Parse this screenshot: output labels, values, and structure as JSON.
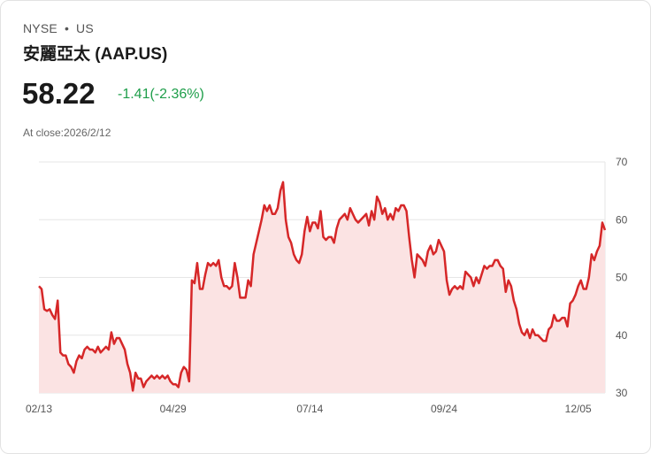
{
  "header": {
    "exchange": "NYSE",
    "separator": "•",
    "market": "US",
    "title": "安麗亞太 (AAP.US)",
    "price": "58.22",
    "change": "-1.41(-2.36%)",
    "close_label": "At close:2026/2/12"
  },
  "colors": {
    "line": "#d62728",
    "fill": "#fbe3e3",
    "grid": "#e6e6e6",
    "change_text": "#1e9e4a"
  },
  "chart_data": {
    "type": "area",
    "title": "安麗亞太 (AAP.US)",
    "xlabel": "",
    "ylabel": "",
    "ylim": [
      30,
      70
    ],
    "yticks": [
      30,
      40,
      50,
      60,
      70
    ],
    "y_axis_side": "right",
    "grid": true,
    "x_tick_labels": [
      {
        "label": "02/13",
        "index": 0
      },
      {
        "label": "04/29",
        "index": 50
      },
      {
        "label": "07/14",
        "index": 101
      },
      {
        "label": "09/24",
        "index": 151
      },
      {
        "label": "12/05",
        "index": 201
      }
    ],
    "series": [
      {
        "name": "AAP.US",
        "values": [
          48.5,
          48,
          44.5,
          44.2,
          44.5,
          43.5,
          42.8,
          46,
          37,
          36.5,
          36.5,
          35,
          34.5,
          33.5,
          35.5,
          36.5,
          36,
          37.5,
          38,
          37.5,
          37.5,
          37,
          38,
          37,
          37.5,
          38,
          37.5,
          40.5,
          38.5,
          39.5,
          39.5,
          38.5,
          37.5,
          35,
          33.5,
          30.4,
          33.5,
          32.5,
          32.5,
          31,
          32,
          32.5,
          33,
          32.5,
          33,
          32.5,
          33,
          32.5,
          33,
          32,
          31.5,
          31.5,
          31,
          33.5,
          34.5,
          34,
          32,
          49.5,
          49,
          52.5,
          48,
          48,
          50.5,
          52.5,
          52,
          52.5,
          52,
          53,
          50,
          48.5,
          48.5,
          48,
          48.5,
          52.5,
          50,
          46.5,
          46.5,
          46.5,
          49.5,
          48.5,
          54,
          56,
          58,
          60,
          62.5,
          61.5,
          62.5,
          61,
          61,
          62,
          65,
          66.5,
          60,
          57,
          56,
          54,
          53,
          52.5,
          54,
          58,
          60.5,
          58,
          59.5,
          59.5,
          58.5,
          61.5,
          57,
          56.5,
          57,
          57,
          56,
          58.5,
          60,
          60.5,
          61,
          60,
          62,
          61,
          60,
          59.5,
          60,
          60.5,
          61,
          59,
          61.5,
          60,
          64,
          63,
          61,
          62,
          60,
          61,
          60,
          62,
          61.5,
          62.5,
          62.5,
          61.5,
          57,
          53,
          50,
          54,
          53.5,
          53,
          52,
          54.5,
          55.5,
          54,
          54.5,
          56.5,
          55.5,
          54.5,
          49.5,
          47,
          48,
          48.5,
          48,
          48.5,
          48,
          51,
          50.5,
          50,
          48.5,
          50,
          49,
          50.5,
          52,
          51.5,
          52,
          52,
          53,
          53,
          52,
          51.5,
          47.5,
          49.5,
          48.5,
          46,
          44.5,
          42,
          40.5,
          40,
          41,
          39.5,
          41,
          40,
          40,
          39.5,
          39,
          39,
          41,
          41.5,
          43.5,
          42.5,
          42.5,
          43,
          43,
          41.5,
          45.5,
          46,
          47,
          48.5,
          49.5,
          48,
          48,
          50,
          54,
          53,
          54.5,
          55.5,
          59.5,
          58.2
        ]
      }
    ]
  }
}
